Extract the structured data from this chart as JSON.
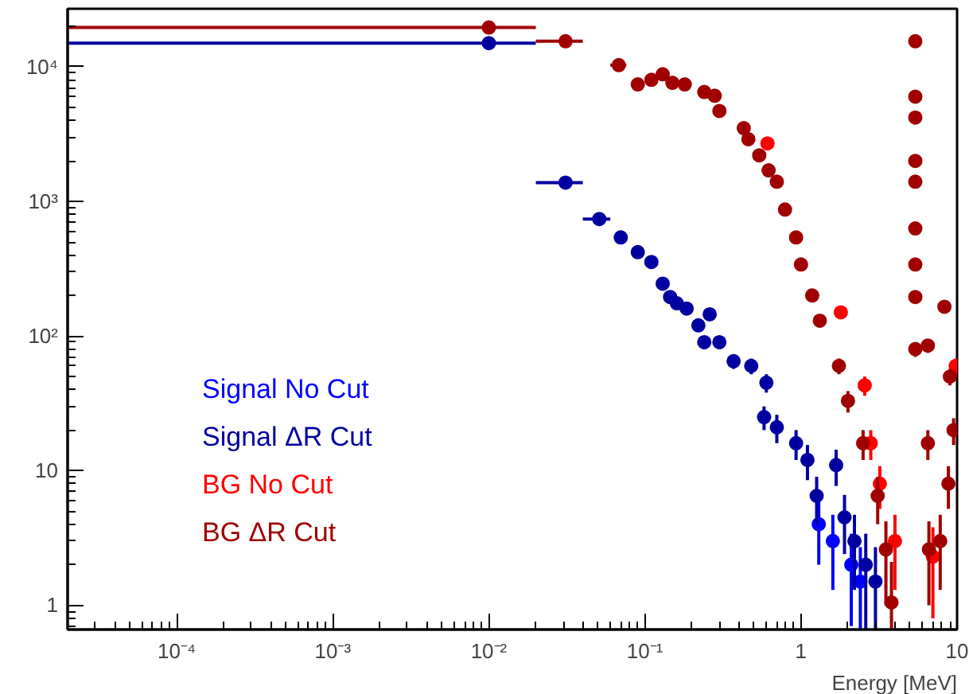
{
  "chart_data": {
    "type": "scatter",
    "xlabel": "Energy [MeV]",
    "log": "xy",
    "grid": false,
    "legend": "left",
    "marker": "circle",
    "xlim": [
      2e-05,
      10
    ],
    "ylim": [
      0.66,
      27000
    ],
    "xticks": [
      {
        "value": 0.0001,
        "label": "10⁻⁴"
      },
      {
        "value": 0.001,
        "label": "10⁻³"
      },
      {
        "value": 0.01,
        "label": "10⁻²"
      },
      {
        "value": 0.1,
        "label": "10⁻¹"
      },
      1,
      10
    ],
    "yticks": [
      1,
      10,
      {
        "value": 100,
        "label": "10²"
      },
      {
        "value": 1000,
        "label": "10³"
      },
      {
        "value": 10000,
        "label": "10⁴"
      }
    ],
    "series": [
      {
        "name": "Signal No Cut",
        "color": "#0000ff",
        "x": [
          1.3,
          1.6,
          2.1,
          2.4
        ],
        "values": [
          4,
          3,
          2,
          1.5
        ],
        "errors": [
          [
            2,
            6
          ],
          [
            1.3,
            4.7
          ],
          [
            0.7,
            3.4
          ],
          [
            0.66,
            2.7
          ]
        ]
      },
      {
        "name": "Signal ΔR Cut",
        "color": "#0000a0",
        "x": [
          0.01,
          0.031,
          0.051,
          0.07,
          0.09,
          0.11,
          0.13,
          0.145,
          0.16,
          0.185,
          0.22,
          0.24,
          0.26,
          0.3,
          0.37,
          0.48,
          0.58,
          0.6,
          0.7,
          0.93,
          1.1,
          1.26,
          1.68,
          1.9,
          2.2,
          2.6,
          3.0
        ],
        "values": [
          15000,
          1380,
          740,
          540,
          420,
          355,
          245,
          195,
          175,
          160,
          120,
          90,
          145,
          90,
          65,
          60,
          25,
          45,
          21,
          16,
          12,
          6.5,
          11,
          4.5,
          3,
          2,
          1.5
        ],
        "xerrors": [
          [
            2e-05,
            0.02
          ],
          [
            0.02,
            0.04
          ],
          [
            0.04,
            0.06
          ],
          null,
          null,
          null,
          null,
          null,
          null,
          null,
          null,
          null,
          null,
          null,
          null,
          null,
          null,
          null,
          null,
          null,
          null,
          null,
          null,
          null,
          null,
          null,
          null
        ],
        "errors": [
          null,
          null,
          null,
          null,
          null,
          null,
          null,
          null,
          null,
          null,
          null,
          [
            80,
            100
          ],
          null,
          [
            80,
            100
          ],
          [
            57,
            73
          ],
          [
            52,
            68
          ],
          [
            20,
            30
          ],
          [
            38,
            52
          ],
          [
            16,
            26
          ],
          [
            12,
            20
          ],
          [
            8.5,
            15.5
          ],
          [
            4,
            9
          ],
          [
            7.7,
            14.3
          ],
          [
            2.4,
            6.6
          ],
          [
            1.3,
            4.7
          ],
          [
            0.66,
            3.4
          ],
          [
            0.66,
            2.7
          ]
        ]
      },
      {
        "name": "BG No Cut",
        "color": "#ff0000",
        "x": [
          0.61,
          1.8,
          2.56,
          2.8,
          3.2,
          4.0,
          7.0,
          9.8
        ],
        "values": [
          2700,
          150,
          43,
          16,
          8,
          3,
          2.3,
          60
        ],
        "errors": [
          null,
          [
            138,
            162
          ],
          [
            36,
            50
          ],
          [
            12,
            20
          ],
          [
            5.2,
            10.8
          ],
          [
            1.3,
            4.7
          ],
          [
            0.8,
            3.8
          ],
          [
            52,
            68
          ]
        ]
      },
      {
        "name": "BG ΔR Cut",
        "color": "#a00000",
        "x": [
          0.01,
          0.031,
          0.068,
          0.09,
          0.11,
          0.13,
          0.15,
          0.18,
          0.24,
          0.28,
          0.3,
          0.43,
          0.46,
          0.54,
          0.62,
          0.7,
          0.79,
          0.93,
          1.0,
          1.18,
          1.32,
          1.75,
          2.0,
          2.5,
          3.1,
          3.5,
          3.8,
          5.4,
          5.4,
          5.4,
          5.4,
          5.4,
          5.4,
          5.4,
          5.4,
          5.4,
          6.5,
          6.5,
          6.6,
          7.8,
          8.3,
          8.8,
          9.0,
          9.5
        ],
        "values": [
          19600,
          15500,
          10300,
          7400,
          8000,
          8800,
          7600,
          7400,
          6500,
          6100,
          4700,
          3500,
          2900,
          2200,
          1700,
          1400,
          870,
          540,
          340,
          200,
          130,
          60,
          33,
          16,
          6.5,
          2.6,
          1.05,
          15500,
          6000,
          4200,
          2000,
          1400,
          630,
          340,
          195,
          80,
          85,
          16,
          2.6,
          3,
          165,
          8,
          50,
          20
        ],
        "xerrors": [
          [
            2e-05,
            0.02
          ],
          [
            0.02,
            0.04
          ],
          [
            0.06,
            0.076
          ],
          null,
          null,
          null,
          null,
          null,
          null,
          null,
          null,
          null,
          null,
          null,
          null,
          null,
          null,
          null,
          null,
          null,
          null,
          null,
          null,
          null,
          null,
          null,
          null,
          null,
          null,
          null,
          null,
          null,
          null,
          null,
          null,
          null,
          null,
          null,
          null,
          null,
          null,
          null,
          null,
          null
        ],
        "errors": [
          null,
          null,
          null,
          null,
          null,
          null,
          null,
          null,
          null,
          null,
          null,
          null,
          null,
          null,
          null,
          null,
          null,
          null,
          null,
          null,
          null,
          [
            52,
            68
          ],
          [
            27,
            39
          ],
          [
            12,
            20
          ],
          [
            4,
            9
          ],
          [
            1,
            4.2
          ],
          [
            0.66,
            2.1
          ],
          null,
          null,
          null,
          null,
          [
            1300,
            1500
          ],
          [
            580,
            680
          ],
          [
            310,
            370
          ],
          [
            180,
            210
          ],
          [
            70,
            90
          ],
          [
            75,
            95
          ],
          [
            12,
            20
          ],
          [
            1,
            4.2
          ],
          [
            1.3,
            4.7
          ],
          [
            150,
            180
          ],
          [
            5.2,
            10.8
          ],
          [
            43,
            57
          ],
          [
            15.5,
            24.5
          ]
        ]
      }
    ]
  }
}
